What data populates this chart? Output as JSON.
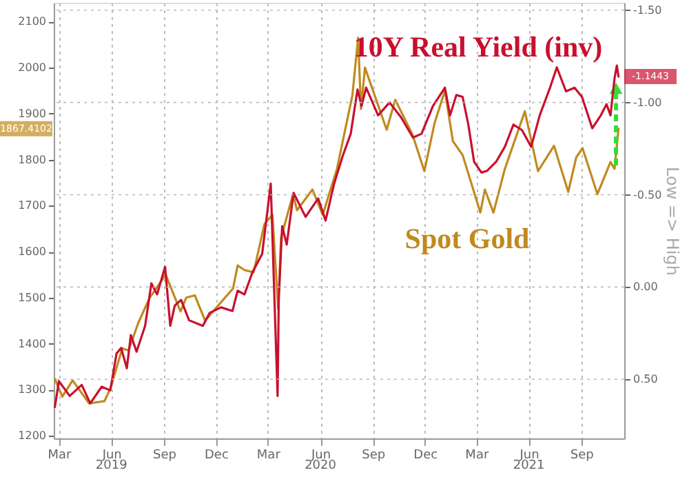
{
  "chart_data": {
    "type": "line",
    "y2label": "Low => High",
    "xlim": [
      "2019-02-20",
      "2021-11-15"
    ],
    "xticks": [
      {
        "value": "2019-03-01",
        "label": "Mar"
      },
      {
        "value": "2019-06-01",
        "label": "Jun"
      },
      {
        "value": "2019-09-01",
        "label": "Sep"
      },
      {
        "value": "2019-12-01",
        "label": "Dec"
      },
      {
        "value": "2020-03-01",
        "label": "Mar"
      },
      {
        "value": "2020-06-01",
        "label": "Jun"
      },
      {
        "value": "2020-09-01",
        "label": "Sep"
      },
      {
        "value": "2020-12-01",
        "label": "Dec"
      },
      {
        "value": "2021-03-01",
        "label": "Mar"
      },
      {
        "value": "2021-06-01",
        "label": "Jun"
      },
      {
        "value": "2021-09-01",
        "label": "Sep"
      }
    ],
    "ylim": [
      1194,
      2141
    ],
    "yticks": [
      1200,
      1300,
      1400,
      1500,
      1600,
      1700,
      1800,
      1900,
      2000,
      2100
    ],
    "y2lim": [
      0.82,
      -1.54
    ],
    "y2ticks": [
      {
        "value": -1.5,
        "label": "-1.50"
      },
      {
        "value": -1.0,
        "label": "-1.00"
      },
      {
        "value": -0.5,
        "label": "-0.50"
      },
      {
        "value": 0.0,
        "label": "0.00"
      },
      {
        "value": 0.5,
        "label": "0.50"
      }
    ],
    "grid": true,
    "legend": false,
    "line_style": "solid",
    "annotations": [
      "1867.4102",
      "-1.1443",
      "2019",
      "2020",
      "2021"
    ],
    "series": [
      {
        "name": "Spot Gold",
        "color": "#c08a1e",
        "x": [
          "2019-02-22",
          "2019-03-07",
          "2019-03-25",
          "2019-04-23",
          "2019-05-20",
          "2019-05-31",
          "2019-06-20",
          "2019-07-01",
          "2019-07-18",
          "2019-08-07",
          "2019-08-13",
          "2019-09-04",
          "2019-09-30",
          "2019-10-10",
          "2019-10-25",
          "2019-11-12",
          "2019-12-03",
          "2019-12-31",
          "2020-01-08",
          "2020-01-20",
          "2020-02-05",
          "2020-02-24",
          "2020-03-09",
          "2020-03-19",
          "2020-03-24",
          "2020-04-14",
          "2020-04-21",
          "2020-05-18",
          "2020-06-05",
          "2020-06-30",
          "2020-07-27",
          "2020-08-06",
          "2020-08-11",
          "2020-08-18",
          "2020-09-25",
          "2020-10-10",
          "2020-11-09",
          "2020-11-30",
          "2020-12-18",
          "2021-01-05",
          "2021-01-19",
          "2021-02-05",
          "2021-03-08",
          "2021-03-16",
          "2021-03-31",
          "2021-04-20",
          "2021-05-25",
          "2021-06-17",
          "2021-07-15",
          "2021-08-09",
          "2021-08-23",
          "2021-09-03",
          "2021-09-29",
          "2021-10-22",
          "2021-10-29",
          "2021-11-05"
        ],
        "values": [
          1323,
          1285,
          1320,
          1270,
          1275,
          1305,
          1390,
          1385,
          1445,
          1500,
          1510,
          1550,
          1470,
          1500,
          1505,
          1450,
          1480,
          1520,
          1570,
          1560,
          1555,
          1660,
          1680,
          1475,
          1630,
          1725,
          1690,
          1735,
          1680,
          1780,
          1940,
          2065,
          1910,
          2000,
          1865,
          1930,
          1855,
          1775,
          1880,
          1950,
          1840,
          1810,
          1685,
          1735,
          1685,
          1780,
          1905,
          1775,
          1830,
          1730,
          1805,
          1825,
          1725,
          1795,
          1780,
          1867
        ]
      },
      {
        "name": "10Y Real Yield (inv)",
        "color": "#c8102e",
        "axis": "y2",
        "x": [
          "2019-02-22",
          "2019-03-01",
          "2019-03-20",
          "2019-04-10",
          "2019-04-25",
          "2019-05-15",
          "2019-05-30",
          "2019-06-10",
          "2019-06-18",
          "2019-06-28",
          "2019-07-05",
          "2019-07-15",
          "2019-07-30",
          "2019-08-10",
          "2019-08-20",
          "2019-09-03",
          "2019-09-12",
          "2019-09-20",
          "2019-10-01",
          "2019-10-15",
          "2019-11-08",
          "2019-11-20",
          "2019-12-10",
          "2019-12-30",
          "2020-01-08",
          "2020-01-20",
          "2020-02-03",
          "2020-02-20",
          "2020-03-06",
          "2020-03-12",
          "2020-03-18",
          "2020-03-20",
          "2020-03-26",
          "2020-04-03",
          "2020-04-15",
          "2020-05-06",
          "2020-05-28",
          "2020-06-10",
          "2020-06-25",
          "2020-07-10",
          "2020-07-24",
          "2020-08-05",
          "2020-08-12",
          "2020-08-20",
          "2020-09-10",
          "2020-09-30",
          "2020-10-20",
          "2020-11-10",
          "2020-11-25",
          "2020-12-15",
          "2021-01-05",
          "2021-01-14",
          "2021-01-25",
          "2021-02-05",
          "2021-02-15",
          "2021-02-25",
          "2021-03-10",
          "2021-03-20",
          "2021-04-05",
          "2021-04-20",
          "2021-05-05",
          "2021-05-20",
          "2021-06-05",
          "2021-06-20",
          "2021-07-08",
          "2021-07-20",
          "2021-08-05",
          "2021-08-20",
          "2021-09-02",
          "2021-09-20",
          "2021-10-05",
          "2021-10-15",
          "2021-10-22",
          "2021-10-29",
          "2021-11-02",
          "2021-11-05"
        ],
        "values": [
          0.65,
          0.51,
          0.59,
          0.53,
          0.63,
          0.54,
          0.56,
          0.36,
          0.33,
          0.44,
          0.26,
          0.35,
          0.21,
          -0.02,
          0.04,
          -0.11,
          0.21,
          0.1,
          0.07,
          0.18,
          0.21,
          0.14,
          0.11,
          0.13,
          0.02,
          0.04,
          -0.08,
          -0.18,
          -0.56,
          0.02,
          0.59,
          0.07,
          -0.33,
          -0.23,
          -0.51,
          -0.38,
          -0.48,
          -0.36,
          -0.56,
          -0.71,
          -0.83,
          -1.07,
          -0.98,
          -1.08,
          -0.93,
          -1.0,
          -0.92,
          -0.81,
          -0.83,
          -0.98,
          -1.08,
          -0.93,
          -1.04,
          -1.03,
          -0.88,
          -0.68,
          -0.62,
          -0.63,
          -0.68,
          -0.76,
          -0.88,
          -0.85,
          -0.76,
          -0.93,
          -1.08,
          -1.19,
          -1.06,
          -1.08,
          -1.03,
          -0.86,
          -0.93,
          -0.99,
          -0.93,
          -1.13,
          -1.2,
          -1.14
        ]
      }
    ]
  }
}
